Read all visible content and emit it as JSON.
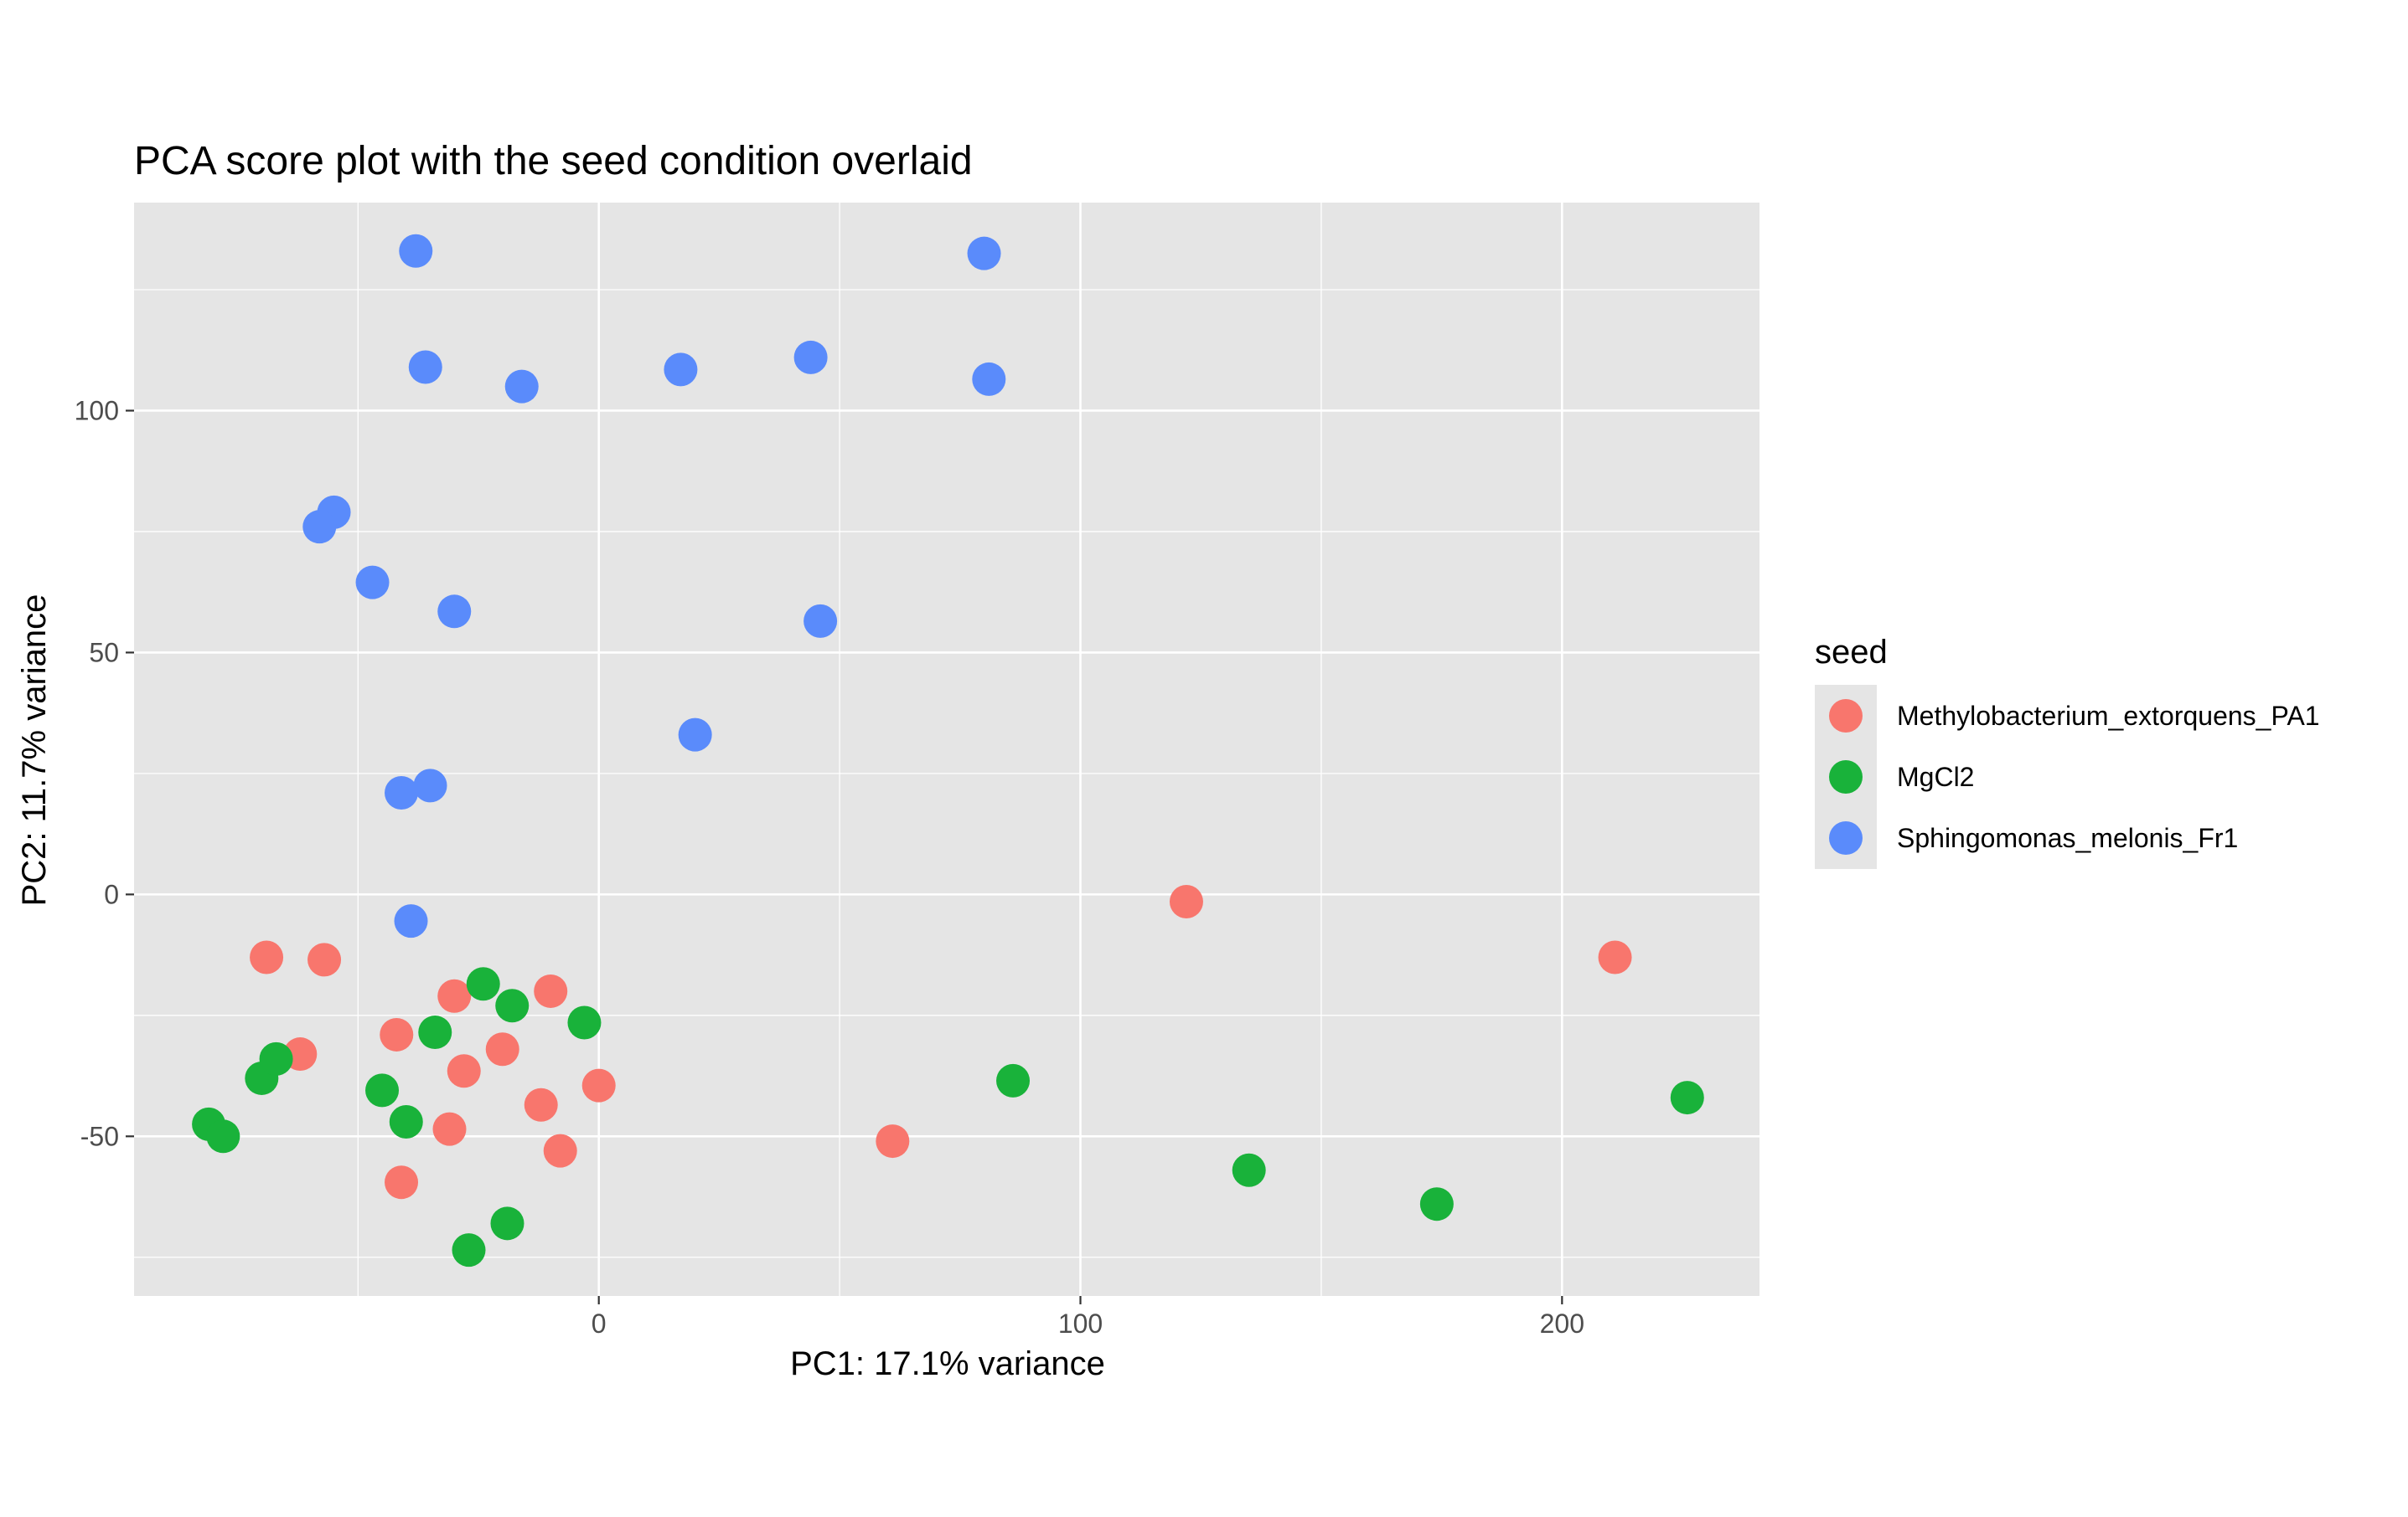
{
  "chart_data": {
    "type": "scatter",
    "title": "PCA score plot with the seed condition overlaid",
    "xlabel": "PC1: 17.1% variance",
    "ylabel": "PC2: 11.7% variance",
    "xlim": [
      -96.5,
      241
    ],
    "ylim": [
      -83,
      143
    ],
    "x_ticks": [
      0,
      100,
      200
    ],
    "x_tick_labels": [
      "0",
      "100",
      "200"
    ],
    "y_ticks": [
      -50,
      0,
      50,
      100
    ],
    "y_tick_labels": [
      "-50",
      "0",
      "50",
      "100"
    ],
    "grid": true,
    "legend": {
      "title": "seed",
      "position": "right"
    },
    "colors": {
      "panel": "#e5e5e5",
      "grid": "#ffffff",
      "Methylobacterium_extorquens_PA1": "#f8766d",
      "MgCl2": "#19b23a",
      "Sphingomonas_melonis_Fr1": "#5a8bfb"
    },
    "series": [
      {
        "name": "Methylobacterium_extorquens_PA1",
        "points": [
          {
            "x": -69,
            "y": -13
          },
          {
            "x": -57,
            "y": -13.5
          },
          {
            "x": -62,
            "y": -33
          },
          {
            "x": -42,
            "y": -29
          },
          {
            "x": -30,
            "y": -21
          },
          {
            "x": -28,
            "y": -36.5
          },
          {
            "x": -20,
            "y": -32
          },
          {
            "x": -10,
            "y": -20
          },
          {
            "x": -12,
            "y": -43.5
          },
          {
            "x": -8,
            "y": -53
          },
          {
            "x": 0,
            "y": -39.5
          },
          {
            "x": -31,
            "y": -48.5
          },
          {
            "x": -41,
            "y": -59.5
          },
          {
            "x": 61,
            "y": -51
          },
          {
            "x": 122,
            "y": -1.5
          },
          {
            "x": 211,
            "y": -13
          }
        ]
      },
      {
        "name": "MgCl2",
        "points": [
          {
            "x": -81,
            "y": -47.5
          },
          {
            "x": -78,
            "y": -50
          },
          {
            "x": -70,
            "y": -38
          },
          {
            "x": -67,
            "y": -34
          },
          {
            "x": -45,
            "y": -40.5
          },
          {
            "x": -40,
            "y": -47
          },
          {
            "x": -34,
            "y": -28.5
          },
          {
            "x": -24,
            "y": -18.5
          },
          {
            "x": -18,
            "y": -23
          },
          {
            "x": -3,
            "y": -26.5
          },
          {
            "x": -19,
            "y": -68
          },
          {
            "x": -27,
            "y": -73.5
          },
          {
            "x": 86,
            "y": -38.5
          },
          {
            "x": 135,
            "y": -57
          },
          {
            "x": 174,
            "y": -64
          },
          {
            "x": 226,
            "y": -42
          }
        ]
      },
      {
        "name": "Sphingomonas_melonis_Fr1",
        "points": [
          {
            "x": -38,
            "y": 133
          },
          {
            "x": -36,
            "y": 109
          },
          {
            "x": -16,
            "y": 105
          },
          {
            "x": 17,
            "y": 108.5
          },
          {
            "x": 44,
            "y": 111
          },
          {
            "x": 80,
            "y": 132.5
          },
          {
            "x": 81,
            "y": 106.5
          },
          {
            "x": -55,
            "y": 79
          },
          {
            "x": -58,
            "y": 76
          },
          {
            "x": -47,
            "y": 64.5
          },
          {
            "x": -30,
            "y": 58.5
          },
          {
            "x": 46,
            "y": 56.5
          },
          {
            "x": 20,
            "y": 33
          },
          {
            "x": -41,
            "y": 21
          },
          {
            "x": -35,
            "y": 22.5
          },
          {
            "x": -39,
            "y": -5.5
          }
        ]
      }
    ]
  }
}
